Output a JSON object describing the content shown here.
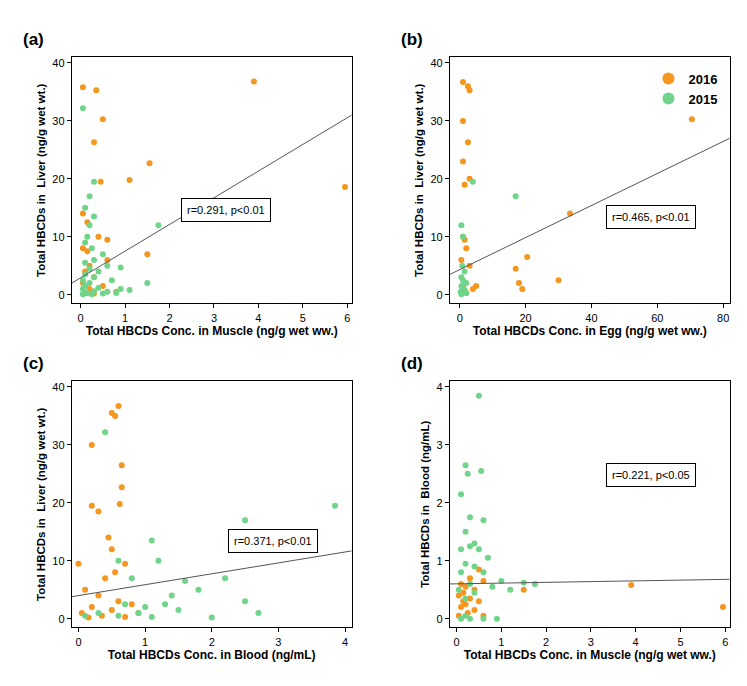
{
  "chart_data": [
    {
      "type": "scatter",
      "label": "(a)",
      "xlabel": "Total HBCDs Conc. in Muscle (ng/g wet ww.)",
      "ylabel": "Total HBCDs in  Liver (ng/g wet wt.)",
      "xlim": [
        -0.2,
        6.1
      ],
      "ylim": [
        -1.5,
        41
      ],
      "xticks": [
        0,
        1,
        2,
        3,
        4,
        5,
        6
      ],
      "yticks": [
        0,
        10,
        20,
        30,
        40
      ],
      "grid": false,
      "series": [
        {
          "name": "2016",
          "color": "#f5961e",
          "x": [
            0.05,
            0.35,
            3.9,
            0.5,
            0.3,
            1.55,
            1.1,
            0.45,
            5.95,
            0.05,
            0.15,
            0.6,
            0.4,
            0.05,
            0.15,
            1.5,
            0.2,
            0.6,
            0.1,
            0.3,
            0.05,
            0.5,
            0.2,
            0.8,
            0.1,
            0.3
          ],
          "values": [
            35.8,
            35.3,
            36.8,
            30.3,
            26.3,
            22.7,
            19.8,
            19.5,
            18.6,
            14,
            12.5,
            9.5,
            10,
            8,
            7.5,
            7,
            5,
            6,
            4,
            3,
            2,
            1.5,
            1,
            0.5,
            0.3,
            0.2
          ]
        },
        {
          "name": "2015",
          "color": "#70d48a",
          "x": [
            0.05,
            0.3,
            0.2,
            0.1,
            0.3,
            0.2,
            1.75,
            0.15,
            0.1,
            0.25,
            0.5,
            0.3,
            0.1,
            0.6,
            0.2,
            0.9,
            0.4,
            0.1,
            0.3,
            0.05,
            0.7,
            1.5,
            0.2,
            0.1,
            0.4,
            0.9,
            1.1,
            0.05,
            0.3,
            0.6,
            0.15,
            0.25,
            0.5,
            0.8,
            0.05
          ],
          "values": [
            32.2,
            19.5,
            17,
            15,
            13.5,
            12,
            12,
            10,
            9,
            8,
            7,
            6,
            5.5,
            5,
            4.5,
            4.7,
            4,
            3.5,
            3,
            2.5,
            2.5,
            2,
            2,
            1.5,
            1.2,
            1,
            0.8,
            1,
            0.6,
            0.5,
            0.3,
            0.1,
            0.2,
            0.3,
            0.1
          ]
        }
      ],
      "fit": {
        "x": [
          -0.2,
          6.1
        ],
        "y": [
          2,
          31
        ]
      },
      "annotation": "r=0.291, p<0.01"
    },
    {
      "type": "scatter",
      "label": "(b)",
      "xlabel": "Total HBCDs Conc. in Egg (ng/g wet ww.)",
      "ylabel": "Total HBCDs in  Liver (ng/g wet wt.)",
      "xlim": [
        -3,
        82
      ],
      "ylim": [
        -1.5,
        41
      ],
      "xticks": [
        0,
        20,
        40,
        60,
        80
      ],
      "yticks": [
        0,
        10,
        20,
        30,
        40
      ],
      "grid": false,
      "legend": "upper right",
      "series": [
        {
          "name": "2016",
          "color": "#f5961e",
          "x": [
            1,
            2.5,
            3,
            1,
            70.5,
            2.5,
            1,
            3,
            1.5,
            33.5,
            1,
            1.5,
            2,
            0.5,
            20.5,
            3,
            17,
            30,
            18,
            5,
            19,
            1,
            0.5,
            2,
            4
          ],
          "values": [
            36.7,
            36,
            35.3,
            30,
            30.3,
            26.3,
            23,
            20,
            19,
            14,
            10,
            9.5,
            8,
            6,
            6.5,
            5,
            4.5,
            2.5,
            2,
            1.5,
            1,
            1.5,
            0.5,
            0.3,
            1
          ]
        },
        {
          "name": "2015",
          "color": "#70d48a",
          "x": [
            4,
            17,
            0.5,
            1,
            0.8,
            1.5,
            0.5,
            1,
            2,
            0.5,
            1,
            0.3,
            2,
            0.5,
            1.5
          ],
          "values": [
            19.5,
            17,
            12,
            10,
            5,
            4,
            3,
            2.5,
            2,
            1.5,
            1,
            0.5,
            0.3,
            0.1,
            0.8
          ]
        }
      ],
      "fit": {
        "x": [
          -3,
          82
        ],
        "y": [
          3.5,
          27
        ]
      },
      "annotation": "r=0.465, p<0.01"
    },
    {
      "type": "scatter",
      "label": "(c)",
      "xlabel": "Total HBCDs Conc. in Blood (ng/mL)",
      "ylabel": "Total HBCDs in  Liver (ng/g wet wt.)",
      "xlim": [
        -0.1,
        4.1
      ],
      "ylim": [
        -1.5,
        41
      ],
      "xticks": [
        0,
        1,
        2,
        3,
        4
      ],
      "yticks": [
        0,
        10,
        20,
        30,
        40
      ],
      "grid": false,
      "series": [
        {
          "name": "2016",
          "color": "#f5961e",
          "x": [
            0.6,
            0.5,
            0.55,
            0.2,
            0.65,
            0.2,
            0.3,
            0,
            0.45,
            0.5,
            0.65,
            0.62,
            0.55,
            0.4,
            0.7,
            0.1,
            0.3,
            0.6,
            0.8,
            0.2,
            0.5,
            0.05,
            0.35,
            0.7,
            0.9,
            0.15
          ],
          "values": [
            36.7,
            35.5,
            35,
            30,
            26.5,
            19.5,
            18.5,
            9.5,
            14,
            12,
            22.7,
            19.8,
            8,
            7,
            9.5,
            5,
            4,
            3,
            2.5,
            2,
            1.5,
            1,
            0.5,
            0.3,
            1,
            0.2
          ]
        },
        {
          "name": "2015",
          "color": "#70d48a",
          "x": [
            0.4,
            3.85,
            2.5,
            1.1,
            1.2,
            0.6,
            0.8,
            1.6,
            1.8,
            2.2,
            2.5,
            1.3,
            1,
            1.5,
            2.7,
            0.9,
            0.3,
            0.6,
            1.1,
            2,
            0.1,
            1.4,
            0.7
          ],
          "values": [
            32.2,
            19.5,
            17,
            13.5,
            10,
            10,
            7,
            6.5,
            5,
            7,
            3,
            2.5,
            2,
            1.5,
            1,
            1,
            1,
            0.5,
            0.3,
            0.2,
            0.5,
            4,
            2.5
          ]
        }
      ],
      "fit": {
        "x": [
          -0.1,
          4.1
        ],
        "y": [
          3.8,
          11.7
        ]
      },
      "annotation": "r=0.371, p<0.01"
    },
    {
      "type": "scatter",
      "label": "(d)",
      "xlabel": "Total HBCDs Conc. in Muscle (ng/g wet ww.)",
      "ylabel": "Total HBCDs in  Blood (ng/mL)",
      "xlim": [
        -0.15,
        6.1
      ],
      "ylim": [
        -0.15,
        4.1
      ],
      "xticks": [
        0,
        1,
        2,
        3,
        4,
        5,
        6
      ],
      "yticks": [
        0,
        1,
        2,
        3,
        4
      ],
      "grid": false,
      "series": [
        {
          "name": "2016",
          "color": "#f5961e",
          "x": [
            3.9,
            5.95,
            1.5,
            0.5,
            0.3,
            0.1,
            0.2,
            0.4,
            0.6,
            0.15,
            0.05,
            0.3,
            0.5,
            0.2,
            0.1,
            0.4,
            0.25,
            0.6,
            0.05,
            0.15
          ],
          "values": [
            0.58,
            0.2,
            0.5,
            0.85,
            0.7,
            0.6,
            0.55,
            0.5,
            0.65,
            0.45,
            0.4,
            0.35,
            0.3,
            0.25,
            0.2,
            0.15,
            0.1,
            0.05,
            0.05,
            0.3
          ]
        },
        {
          "name": "2015",
          "color": "#70d48a",
          "x": [
            0.5,
            0.2,
            0.25,
            0.55,
            0.1,
            0.3,
            0.6,
            0.2,
            0.4,
            0.3,
            0.1,
            0.5,
            0.7,
            0.2,
            0.4,
            0.1,
            0.6,
            1.0,
            1.5,
            1.75,
            0.3,
            0.8,
            1.2,
            0.05,
            0.4,
            0.2,
            0.1,
            0.3,
            0.6,
            0.9,
            0.2
          ],
          "values": [
            3.85,
            2.65,
            2.5,
            2.55,
            2.15,
            1.75,
            1.7,
            1.5,
            1.3,
            1.25,
            1.2,
            1.2,
            1.05,
            0.95,
            0.9,
            0.8,
            0.8,
            0.65,
            0.62,
            0.6,
            0.6,
            0.55,
            0.5,
            0.5,
            0.45,
            0.35,
            0,
            0,
            0,
            0,
            0.05
          ]
        }
      ],
      "fit": {
        "x": [
          -0.15,
          6.1
        ],
        "y": [
          0.6,
          0.68
        ]
      },
      "annotation": "r=0.221, p<0.05"
    }
  ]
}
